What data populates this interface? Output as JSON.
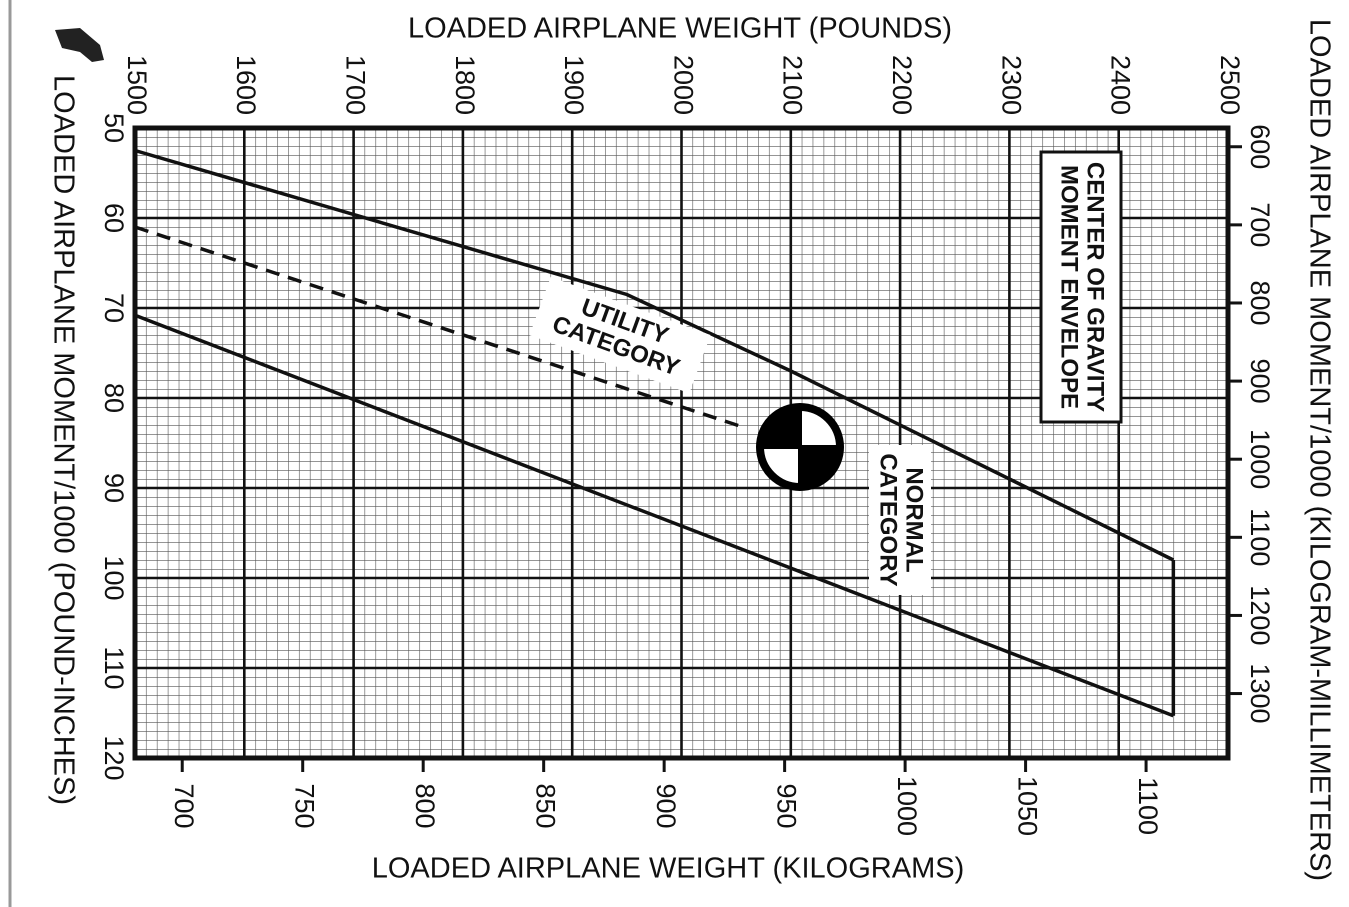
{
  "chart_data": {
    "type": "line",
    "xlabel": "LOADED AIRPLANE WEIGHT (POUNDS)",
    "ylabel": "LOADED AIRPLANE MOMENT/1000 (POUND-INCHES)",
    "x2label": "LOADED AIRPLANE WEIGHT (KILOGRAMS)",
    "y2label": "LOADED AIRPLANE MOMENT/1000 (KILOGRAM-MILLIMETERS)",
    "xlim": [
      1500,
      2500
    ],
    "xticks": [
      1500,
      1600,
      1700,
      1800,
      1900,
      2000,
      2100,
      2200,
      2300,
      2400,
      2500
    ],
    "ylim": [
      50,
      120
    ],
    "y_inverted": true,
    "yticks": [
      50,
      60,
      70,
      80,
      90,
      100,
      110,
      120
    ],
    "x2lim": [
      680.4,
      1134
    ],
    "x2ticks": [
      700,
      750,
      800,
      850,
      900,
      950,
      1000,
      1050,
      1100
    ],
    "y2lim": [
      576,
      1382.5
    ],
    "y2ticks": [
      600,
      700,
      800,
      900,
      1000,
      1100,
      1200,
      1300
    ],
    "grid": true,
    "series": [
      {
        "color": "#111111",
        "dash": false,
        "x": [
          1500,
          1950,
          2100,
          2450
        ],
        "values": [
          52.5,
          68.5,
          77,
          98
        ]
      },
      {
        "color": "#111111",
        "dash": false,
        "x": [
          2450,
          2450
        ],
        "values": [
          98,
          115.3
        ]
      },
      {
        "color": "#111111",
        "dash": false,
        "x": [
          1500,
          2450
        ],
        "values": [
          70.8,
          115.3
        ]
      },
      {
        "color": "#111111",
        "dash": true,
        "x": [
          1500,
          2058
        ],
        "values": [
          61,
          83.3
        ]
      }
    ],
    "annotations": [
      [
        "UTILITY",
        "CATEGORY"
      ],
      [
        "NORMAL",
        "CATEGORY"
      ],
      [
        "CENTER OF GRAVITY",
        "MOMENT ENVELOPE"
      ]
    ]
  }
}
